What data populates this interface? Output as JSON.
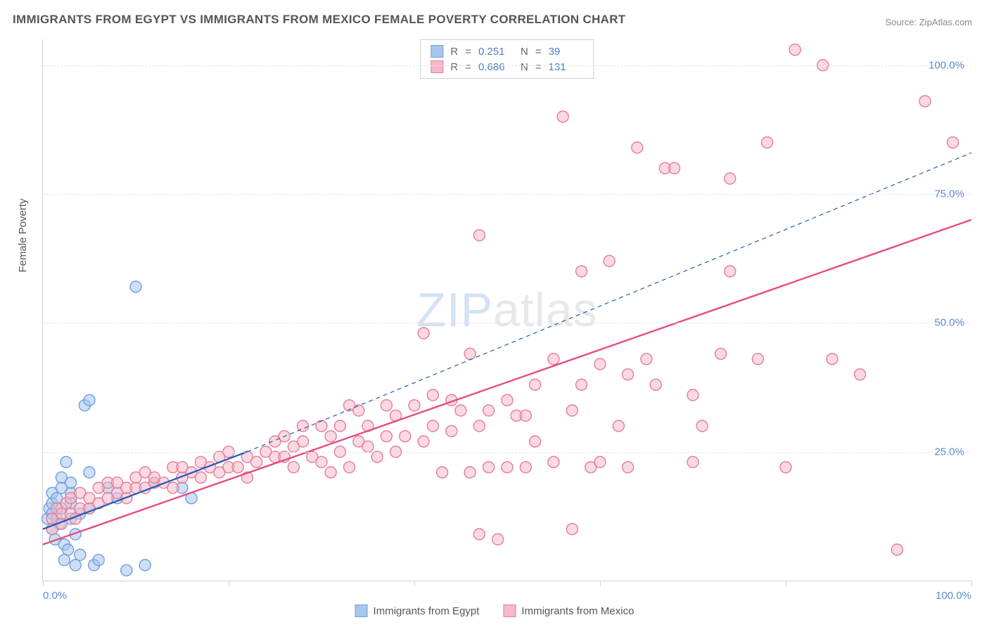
{
  "title": "IMMIGRANTS FROM EGYPT VS IMMIGRANTS FROM MEXICO FEMALE POVERTY CORRELATION CHART",
  "source": "Source: ZipAtlas.com",
  "watermark": {
    "part1": "ZIP",
    "part2": "atlas"
  },
  "y_axis_title": "Female Poverty",
  "chart": {
    "type": "scatter",
    "xlim": [
      0,
      100
    ],
    "ylim": [
      0,
      105
    ],
    "x_ticks": [
      0,
      20,
      40,
      60,
      80,
      100
    ],
    "y_gridlines": [
      25,
      50,
      75,
      100
    ],
    "y_tick_labels": [
      "25.0%",
      "50.0%",
      "75.0%",
      "100.0%"
    ],
    "x_min_label": "0.0%",
    "x_max_label": "100.0%",
    "background_color": "#ffffff",
    "grid_color": "#e4e4e4",
    "axis_color": "#cfcfcf",
    "marker_radius": 8,
    "marker_stroke_width": 1.4,
    "series": [
      {
        "id": "egypt",
        "label": "Immigrants from Egypt",
        "fill": "#a8c5eb",
        "fill_opacity": 0.55,
        "stroke": "#6d9fe0",
        "regression": {
          "x1": 0,
          "y1": 10,
          "x2": 22,
          "y2": 25,
          "width": 2.2,
          "color": "#1e5bb8",
          "dash": ""
        },
        "ext_regression": {
          "x1": 22,
          "y1": 25,
          "x2": 100,
          "y2": 83,
          "width": 1.2,
          "color": "#1e5bb8",
          "dash": "6,5"
        },
        "points": [
          [
            0.5,
            12
          ],
          [
            0.7,
            14
          ],
          [
            1,
            10
          ],
          [
            1,
            13
          ],
          [
            1,
            15
          ],
          [
            1,
            17
          ],
          [
            1.3,
            8
          ],
          [
            1.5,
            12
          ],
          [
            1.5,
            16
          ],
          [
            1.8,
            11
          ],
          [
            2,
            18
          ],
          [
            2,
            20
          ],
          [
            2,
            14
          ],
          [
            2.3,
            4
          ],
          [
            2.3,
            7
          ],
          [
            2.5,
            23
          ],
          [
            2.7,
            6
          ],
          [
            3,
            12
          ],
          [
            3,
            15
          ],
          [
            3,
            17
          ],
          [
            3,
            19
          ],
          [
            3.5,
            3
          ],
          [
            3.5,
            9
          ],
          [
            4,
            5
          ],
          [
            4,
            13
          ],
          [
            4.5,
            34
          ],
          [
            5,
            35
          ],
          [
            5,
            21
          ],
          [
            5,
            14
          ],
          [
            5.5,
            3
          ],
          [
            6,
            4
          ],
          [
            7,
            18
          ],
          [
            8,
            16
          ],
          [
            9,
            2
          ],
          [
            10,
            57
          ],
          [
            11,
            3
          ],
          [
            12,
            19
          ],
          [
            15,
            18
          ],
          [
            16,
            16
          ]
        ]
      },
      {
        "id": "mexico",
        "label": "Immigrants from Mexico",
        "fill": "#f5b9c9",
        "fill_opacity": 0.55,
        "stroke": "#e77c9a",
        "regression": {
          "x1": 0,
          "y1": 7,
          "x2": 100,
          "y2": 70,
          "width": 2.4,
          "color": "#e84c7a",
          "dash": ""
        },
        "points": [
          [
            1,
            10
          ],
          [
            1,
            12
          ],
          [
            1.5,
            14
          ],
          [
            2,
            11
          ],
          [
            2,
            13
          ],
          [
            2.5,
            15
          ],
          [
            3,
            13
          ],
          [
            3,
            16
          ],
          [
            3.5,
            12
          ],
          [
            4,
            14
          ],
          [
            4,
            17
          ],
          [
            5,
            14
          ],
          [
            5,
            16
          ],
          [
            6,
            15
          ],
          [
            6,
            18
          ],
          [
            7,
            16
          ],
          [
            7,
            19
          ],
          [
            8,
            17
          ],
          [
            8,
            19
          ],
          [
            9,
            16
          ],
          [
            9,
            18
          ],
          [
            10,
            18
          ],
          [
            10,
            20
          ],
          [
            11,
            18
          ],
          [
            11,
            21
          ],
          [
            12,
            19
          ],
          [
            12,
            20
          ],
          [
            13,
            19
          ],
          [
            14,
            18
          ],
          [
            14,
            22
          ],
          [
            15,
            20
          ],
          [
            15,
            22
          ],
          [
            16,
            21
          ],
          [
            17,
            20
          ],
          [
            17,
            23
          ],
          [
            18,
            22
          ],
          [
            19,
            21
          ],
          [
            19,
            24
          ],
          [
            20,
            22
          ],
          [
            20,
            25
          ],
          [
            21,
            22
          ],
          [
            22,
            20
          ],
          [
            22,
            24
          ],
          [
            23,
            23
          ],
          [
            24,
            25
          ],
          [
            25,
            24
          ],
          [
            25,
            27
          ],
          [
            26,
            24
          ],
          [
            26,
            28
          ],
          [
            27,
            22
          ],
          [
            27,
            26
          ],
          [
            28,
            27
          ],
          [
            28,
            30
          ],
          [
            29,
            24
          ],
          [
            30,
            23
          ],
          [
            30,
            30
          ],
          [
            31,
            21
          ],
          [
            31,
            28
          ],
          [
            32,
            25
          ],
          [
            32,
            30
          ],
          [
            33,
            22
          ],
          [
            33,
            34
          ],
          [
            34,
            27
          ],
          [
            34,
            33
          ],
          [
            35,
            26
          ],
          [
            35,
            30
          ],
          [
            36,
            24
          ],
          [
            37,
            28
          ],
          [
            37,
            34
          ],
          [
            38,
            25
          ],
          [
            38,
            32
          ],
          [
            39,
            28
          ],
          [
            40,
            34
          ],
          [
            41,
            27
          ],
          [
            41,
            48
          ],
          [
            42,
            30
          ],
          [
            42,
            36
          ],
          [
            43,
            21
          ],
          [
            44,
            29
          ],
          [
            44,
            35
          ],
          [
            45,
            33
          ],
          [
            46,
            21
          ],
          [
            46,
            44
          ],
          [
            47,
            9
          ],
          [
            47,
            30
          ],
          [
            47,
            67
          ],
          [
            48,
            33
          ],
          [
            49,
            8
          ],
          [
            50,
            22
          ],
          [
            50,
            35
          ],
          [
            51,
            32
          ],
          [
            52,
            32
          ],
          [
            53,
            27
          ],
          [
            53,
            38
          ],
          [
            55,
            23
          ],
          [
            55,
            43
          ],
          [
            56,
            90
          ],
          [
            57,
            10
          ],
          [
            57,
            33
          ],
          [
            58,
            38
          ],
          [
            58,
            60
          ],
          [
            59,
            22
          ],
          [
            60,
            42
          ],
          [
            61,
            62
          ],
          [
            62,
            30
          ],
          [
            63,
            40
          ],
          [
            64,
            84
          ],
          [
            65,
            43
          ],
          [
            66,
            38
          ],
          [
            67,
            80
          ],
          [
            68,
            80
          ],
          [
            70,
            36
          ],
          [
            71,
            30
          ],
          [
            73,
            44
          ],
          [
            74,
            60
          ],
          [
            74,
            78
          ],
          [
            77,
            43
          ],
          [
            78,
            85
          ],
          [
            80,
            22
          ],
          [
            81,
            103
          ],
          [
            84,
            100
          ],
          [
            85,
            43
          ],
          [
            88,
            40
          ],
          [
            92,
            6
          ],
          [
            95,
            93
          ],
          [
            98,
            85
          ],
          [
            60,
            23
          ],
          [
            63,
            22
          ],
          [
            70,
            23
          ],
          [
            48,
            22
          ],
          [
            52,
            22
          ]
        ]
      }
    ]
  },
  "stats_legend": {
    "rows": [
      {
        "swatch_fill": "#a8c5eb",
        "swatch_stroke": "#6d9fe0",
        "r_label": "R",
        "eq": "=",
        "r": "0.251",
        "n_label": "N",
        "n": "39"
      },
      {
        "swatch_fill": "#f5b9c9",
        "swatch_stroke": "#e77c9a",
        "r_label": "R",
        "eq": "=",
        "r": "0.686",
        "n_label": "N",
        "n": "131"
      }
    ]
  },
  "bottom_legend": {
    "items": [
      {
        "swatch_fill": "#a8c5eb",
        "swatch_stroke": "#6d9fe0",
        "label": "Immigrants from Egypt"
      },
      {
        "swatch_fill": "#f5b9c9",
        "swatch_stroke": "#e77c9a",
        "label": "Immigrants from Mexico"
      }
    ]
  }
}
